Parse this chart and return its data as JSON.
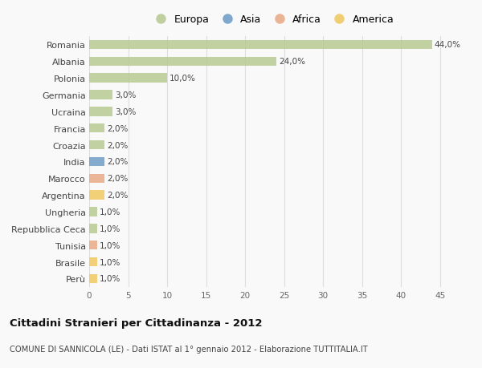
{
  "categories": [
    "Romania",
    "Albania",
    "Polonia",
    "Germania",
    "Ucraina",
    "Francia",
    "Croazia",
    "India",
    "Marocco",
    "Argentina",
    "Ungheria",
    "Repubblica Ceca",
    "Tunisia",
    "Brasile",
    "Perù"
  ],
  "values": [
    44.0,
    24.0,
    10.0,
    3.0,
    3.0,
    2.0,
    2.0,
    2.0,
    2.0,
    2.0,
    1.0,
    1.0,
    1.0,
    1.0,
    1.0
  ],
  "colors": [
    "#b5c98e",
    "#b5c98e",
    "#b5c98e",
    "#b5c98e",
    "#b5c98e",
    "#b5c98e",
    "#b5c98e",
    "#6b9ac4",
    "#e8a882",
    "#f0c75a",
    "#b5c98e",
    "#b5c98e",
    "#e8a882",
    "#f0c75a",
    "#f0c75a"
  ],
  "labels": [
    "44,0%",
    "24,0%",
    "10,0%",
    "3,0%",
    "3,0%",
    "2,0%",
    "2,0%",
    "2,0%",
    "2,0%",
    "2,0%",
    "1,0%",
    "1,0%",
    "1,0%",
    "1,0%",
    "1,0%"
  ],
  "legend_labels": [
    "Europa",
    "Asia",
    "Africa",
    "America"
  ],
  "legend_colors": [
    "#b5c98e",
    "#6b9ac4",
    "#e8a882",
    "#f0c75a"
  ],
  "title": "Cittadini Stranieri per Cittadinanza - 2012",
  "subtitle": "COMUNE DI SANNICOLA (LE) - Dati ISTAT al 1° gennaio 2012 - Elaborazione TUTTITALIA.IT",
  "xlim": [
    0,
    47
  ],
  "xticks": [
    0,
    5,
    10,
    15,
    20,
    25,
    30,
    35,
    40,
    45
  ],
  "background_color": "#f9f9f9",
  "grid_color": "#dddddd",
  "bar_height": 0.55
}
